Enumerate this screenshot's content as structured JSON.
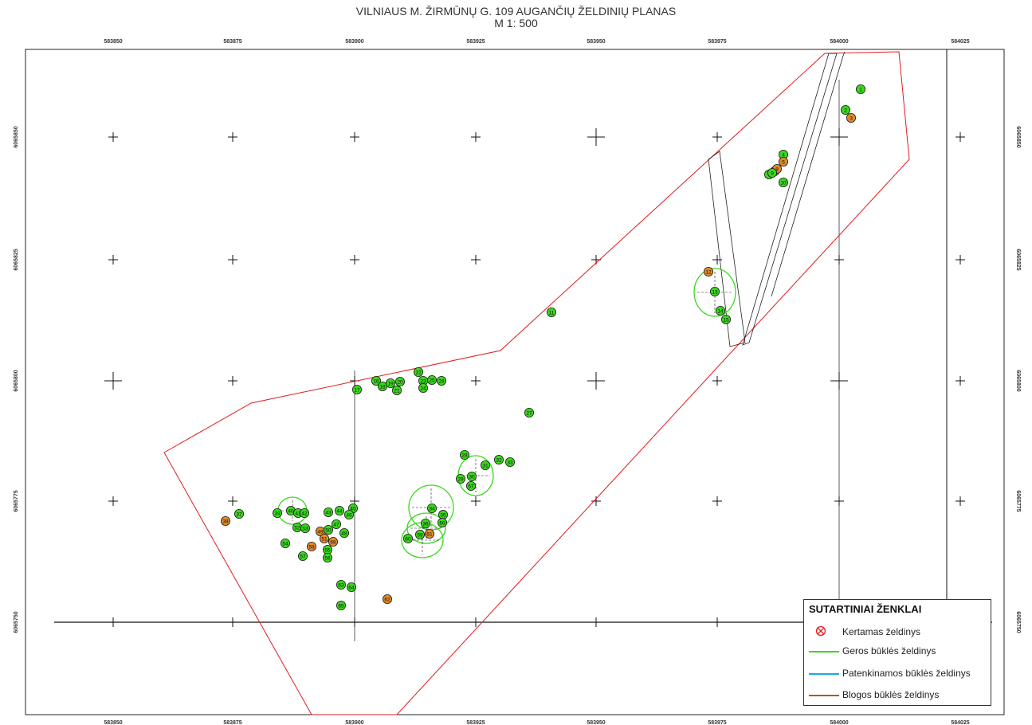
{
  "header": {
    "title": "VILNIAUS M. ŽIRMŪNŲ G. 109 AUGANČIŲ ŽELDINIŲ PLANAS",
    "scale": "M 1: 500"
  },
  "axes": {
    "x_ticks": [
      "583850",
      "583875",
      "583900",
      "583925",
      "583950",
      "583975",
      "584000",
      "584025"
    ],
    "y_ticks": [
      "6065850",
      "6065825",
      "6065800",
      "6065775",
      "6065750"
    ]
  },
  "colors": {
    "boundary": "#e31a1c",
    "good": "#39d81c",
    "satisfactory": "#1fa8e0",
    "bad": "#a0621e",
    "good_fill": "#39d81c",
    "bad_fill": "#e08a2a",
    "cut": "#e31a1c"
  },
  "trees": [
    {
      "id": "1",
      "s": "g"
    },
    {
      "id": "2",
      "s": "g"
    },
    {
      "id": "3",
      "s": "b"
    },
    {
      "id": "4",
      "s": "g"
    },
    {
      "id": "5",
      "s": "b"
    },
    {
      "id": "6",
      "s": "g"
    },
    {
      "id": "7",
      "s": "g"
    },
    {
      "id": "8",
      "s": "b"
    },
    {
      "id": "9",
      "s": "g"
    },
    {
      "id": "10",
      "s": "g"
    },
    {
      "id": "11",
      "s": "g"
    },
    {
      "id": "12",
      "s": "b"
    },
    {
      "id": "13",
      "s": "g"
    },
    {
      "id": "14",
      "s": "g"
    },
    {
      "id": "15",
      "s": "g"
    },
    {
      "id": "16",
      "s": "g"
    },
    {
      "id": "17",
      "s": "g"
    },
    {
      "id": "18",
      "s": "g"
    },
    {
      "id": "19",
      "s": "g"
    },
    {
      "id": "20",
      "s": "g"
    },
    {
      "id": "21",
      "s": "g"
    },
    {
      "id": "22",
      "s": "g"
    },
    {
      "id": "23",
      "s": "g"
    },
    {
      "id": "24",
      "s": "g"
    },
    {
      "id": "25",
      "s": "g"
    },
    {
      "id": "26",
      "s": "g"
    },
    {
      "id": "27",
      "s": "g"
    },
    {
      "id": "28",
      "s": "g"
    },
    {
      "id": "29",
      "s": "g"
    },
    {
      "id": "30",
      "s": "g"
    },
    {
      "id": "31",
      "s": "g"
    },
    {
      "id": "32",
      "s": "g"
    },
    {
      "id": "33",
      "s": "g"
    },
    {
      "id": "34",
      "s": "g"
    },
    {
      "id": "35",
      "s": "g"
    },
    {
      "id": "36",
      "s": "g"
    },
    {
      "id": "37",
      "s": "g"
    },
    {
      "id": "38",
      "s": "b"
    },
    {
      "id": "39",
      "s": "g"
    },
    {
      "id": "40",
      "s": "g"
    },
    {
      "id": "41",
      "s": "g"
    },
    {
      "id": "42",
      "s": "g"
    },
    {
      "id": "43",
      "s": "g"
    },
    {
      "id": "44",
      "s": "g"
    },
    {
      "id": "45",
      "s": "g"
    },
    {
      "id": "46",
      "s": "g"
    },
    {
      "id": "47",
      "s": "g"
    },
    {
      "id": "48",
      "s": "g"
    },
    {
      "id": "49",
      "s": "b"
    },
    {
      "id": "50",
      "s": "g"
    },
    {
      "id": "51",
      "s": "b"
    },
    {
      "id": "52",
      "s": "g"
    },
    {
      "id": "53",
      "s": "g"
    },
    {
      "id": "54",
      "s": "g"
    },
    {
      "id": "55",
      "s": "g"
    },
    {
      "id": "56",
      "s": "g"
    },
    {
      "id": "57",
      "s": "g"
    },
    {
      "id": "58",
      "s": "b"
    },
    {
      "id": "59",
      "s": "g"
    },
    {
      "id": "60",
      "s": "g"
    },
    {
      "id": "61",
      "s": "b"
    },
    {
      "id": "62",
      "s": "b"
    },
    {
      "id": "63",
      "s": "g"
    },
    {
      "id": "64",
      "s": "g"
    },
    {
      "id": "65",
      "s": "g"
    },
    {
      "id": "66",
      "s": "g"
    },
    {
      "id": "67",
      "s": "g"
    },
    {
      "id": "68",
      "s": "b"
    }
  ],
  "legend": {
    "title": "SUTARTINIAI ŽENKLAI",
    "items": [
      {
        "label": "Kertamas želdinys",
        "kind": "cut"
      },
      {
        "label": "Geros būklės želdinys",
        "kind": "good"
      },
      {
        "label": "Patenkinamos būklės želdinys",
        "kind": "satisfactory"
      },
      {
        "label": "Blogos būklės želdinys",
        "kind": "bad"
      }
    ]
  }
}
